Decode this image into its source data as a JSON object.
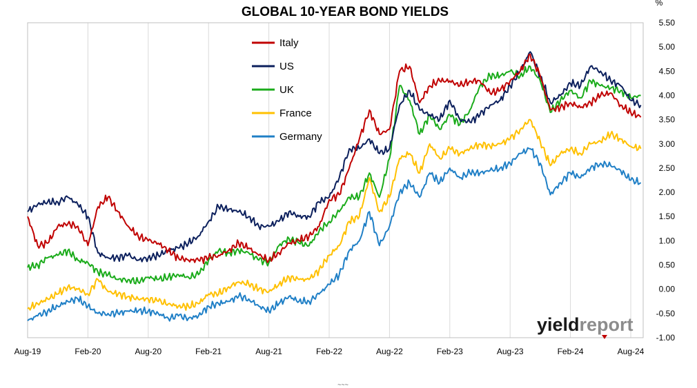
{
  "chart_data": {
    "type": "line",
    "title": "GLOBAL 10-YEAR BOND YIELDS",
    "unit_label": "%",
    "xlabel": "",
    "ylabel": "",
    "x_ticks": [
      "Aug-19",
      "Feb-20",
      "Aug-20",
      "Feb-21",
      "Aug-21",
      "Feb-22",
      "Aug-22",
      "Feb-23",
      "Aug-23",
      "Feb-24",
      "Aug-24"
    ],
    "y_ticks": [
      "5.50",
      "5.00",
      "4.50",
      "4.00",
      "3.50",
      "3.00",
      "2.50",
      "2.00",
      "1.50",
      "1.00",
      "0.50",
      "0.00",
      "-0.50",
      "-1.00"
    ],
    "ylim": [
      -1.0,
      5.5
    ],
    "x_start": "Aug-19",
    "x_end": "Sep-24",
    "grid": "vertical",
    "legend_position": "top-left",
    "series": [
      {
        "name": "Italy",
        "color": "#c00000",
        "x": [
          "2019-08",
          "2019-09",
          "2019-10",
          "2019-11",
          "2019-12",
          "2020-01",
          "2020-02",
          "2020-03",
          "2020-04",
          "2020-05",
          "2020-06",
          "2020-07",
          "2020-08",
          "2020-09",
          "2020-10",
          "2020-11",
          "2020-12",
          "2021-01",
          "2021-02",
          "2021-03",
          "2021-04",
          "2021-05",
          "2021-06",
          "2021-07",
          "2021-08",
          "2021-09",
          "2021-10",
          "2021-11",
          "2021-12",
          "2022-01",
          "2022-02",
          "2022-03",
          "2022-04",
          "2022-05",
          "2022-06",
          "2022-07",
          "2022-08",
          "2022-09",
          "2022-10",
          "2022-11",
          "2022-12",
          "2023-01",
          "2023-02",
          "2023-03",
          "2023-04",
          "2023-05",
          "2023-06",
          "2023-07",
          "2023-08",
          "2023-09",
          "2023-10",
          "2023-11",
          "2023-12",
          "2024-01",
          "2024-02",
          "2024-03",
          "2024-04",
          "2024-05",
          "2024-06",
          "2024-07",
          "2024-08",
          "2024-09"
        ],
        "values": [
          1.5,
          0.9,
          0.95,
          1.3,
          1.35,
          1.3,
          0.9,
          1.7,
          1.9,
          1.6,
          1.3,
          1.1,
          1.0,
          0.95,
          0.8,
          0.65,
          0.6,
          0.6,
          0.65,
          0.7,
          0.8,
          0.95,
          0.85,
          0.7,
          0.6,
          0.75,
          0.95,
          1.0,
          1.1,
          1.3,
          1.85,
          1.95,
          2.5,
          3.1,
          3.7,
          3.2,
          3.3,
          4.5,
          4.6,
          3.85,
          4.2,
          4.3,
          4.3,
          4.2,
          4.3,
          4.3,
          4.05,
          4.1,
          4.3,
          4.5,
          4.85,
          4.4,
          3.7,
          3.75,
          3.85,
          3.75,
          3.85,
          4.0,
          4.05,
          3.8,
          3.65,
          3.55
        ]
      },
      {
        "name": "US",
        "color": "#0b1f5c",
        "x": [
          "2019-08",
          "2019-09",
          "2019-10",
          "2019-11",
          "2019-12",
          "2020-01",
          "2020-02",
          "2020-03",
          "2020-04",
          "2020-05",
          "2020-06",
          "2020-07",
          "2020-08",
          "2020-09",
          "2020-10",
          "2020-11",
          "2020-12",
          "2021-01",
          "2021-02",
          "2021-03",
          "2021-04",
          "2021-05",
          "2021-06",
          "2021-07",
          "2021-08",
          "2021-09",
          "2021-10",
          "2021-11",
          "2021-12",
          "2022-01",
          "2022-02",
          "2022-03",
          "2022-04",
          "2022-05",
          "2022-06",
          "2022-07",
          "2022-08",
          "2022-09",
          "2022-10",
          "2022-11",
          "2022-12",
          "2023-01",
          "2023-02",
          "2023-03",
          "2023-04",
          "2023-05",
          "2023-06",
          "2023-07",
          "2023-08",
          "2023-09",
          "2023-10",
          "2023-11",
          "2023-12",
          "2024-01",
          "2024-02",
          "2024-03",
          "2024-04",
          "2024-05",
          "2024-06",
          "2024-07",
          "2024-08",
          "2024-09"
        ],
        "values": [
          1.6,
          1.75,
          1.8,
          1.8,
          1.9,
          1.75,
          1.5,
          0.75,
          0.65,
          0.65,
          0.7,
          0.6,
          0.65,
          0.7,
          0.8,
          0.85,
          0.95,
          1.1,
          1.4,
          1.7,
          1.65,
          1.6,
          1.5,
          1.3,
          1.3,
          1.4,
          1.6,
          1.5,
          1.5,
          1.8,
          1.9,
          2.3,
          2.9,
          2.9,
          3.1,
          2.8,
          2.9,
          3.8,
          4.1,
          3.7,
          3.6,
          3.5,
          3.9,
          3.5,
          3.45,
          3.6,
          3.8,
          3.9,
          4.2,
          4.5,
          4.9,
          4.4,
          3.85,
          4.0,
          4.25,
          4.2,
          4.6,
          4.5,
          4.3,
          4.2,
          3.9,
          3.8
        ]
      },
      {
        "name": "UK",
        "color": "#1aab1a",
        "x": [
          "2019-08",
          "2019-09",
          "2019-10",
          "2019-11",
          "2019-12",
          "2020-01",
          "2020-02",
          "2020-03",
          "2020-04",
          "2020-05",
          "2020-06",
          "2020-07",
          "2020-08",
          "2020-09",
          "2020-10",
          "2020-11",
          "2020-12",
          "2021-01",
          "2021-02",
          "2021-03",
          "2021-04",
          "2021-05",
          "2021-06",
          "2021-07",
          "2021-08",
          "2021-09",
          "2021-10",
          "2021-11",
          "2021-12",
          "2022-01",
          "2022-02",
          "2022-03",
          "2022-04",
          "2022-05",
          "2022-06",
          "2022-07",
          "2022-08",
          "2022-09",
          "2022-10",
          "2022-11",
          "2022-12",
          "2023-01",
          "2023-02",
          "2023-03",
          "2023-04",
          "2023-05",
          "2023-06",
          "2023-07",
          "2023-08",
          "2023-09",
          "2023-10",
          "2023-11",
          "2023-12",
          "2024-01",
          "2024-02",
          "2024-03",
          "2024-04",
          "2024-05",
          "2024-06",
          "2024-07",
          "2024-08",
          "2024-09"
        ],
        "values": [
          0.45,
          0.5,
          0.65,
          0.7,
          0.8,
          0.6,
          0.55,
          0.35,
          0.3,
          0.2,
          0.2,
          0.15,
          0.25,
          0.2,
          0.25,
          0.3,
          0.25,
          0.3,
          0.6,
          0.8,
          0.75,
          0.8,
          0.75,
          0.6,
          0.55,
          0.9,
          1.05,
          0.95,
          0.9,
          1.2,
          1.4,
          1.6,
          1.9,
          1.9,
          2.4,
          1.9,
          2.7,
          4.2,
          3.9,
          3.2,
          3.6,
          3.3,
          3.6,
          3.4,
          3.7,
          4.2,
          4.4,
          4.4,
          4.5,
          4.4,
          4.6,
          4.3,
          3.65,
          3.9,
          4.1,
          3.95,
          4.3,
          4.2,
          4.15,
          4.1,
          3.95,
          4.0
        ]
      },
      {
        "name": "France",
        "color": "#ffc000",
        "x": [
          "2019-08",
          "2019-09",
          "2019-10",
          "2019-11",
          "2019-12",
          "2020-01",
          "2020-02",
          "2020-03",
          "2020-04",
          "2020-05",
          "2020-06",
          "2020-07",
          "2020-08",
          "2020-09",
          "2020-10",
          "2020-11",
          "2020-12",
          "2021-01",
          "2021-02",
          "2021-03",
          "2021-04",
          "2021-05",
          "2021-06",
          "2021-07",
          "2021-08",
          "2021-09",
          "2021-10",
          "2021-11",
          "2021-12",
          "2022-01",
          "2022-02",
          "2022-03",
          "2022-04",
          "2022-05",
          "2022-06",
          "2022-07",
          "2022-08",
          "2022-09",
          "2022-10",
          "2022-11",
          "2022-12",
          "2023-01",
          "2023-02",
          "2023-03",
          "2023-04",
          "2023-05",
          "2023-06",
          "2023-07",
          "2023-08",
          "2023-09",
          "2023-10",
          "2023-11",
          "2023-12",
          "2024-01",
          "2024-02",
          "2024-03",
          "2024-04",
          "2024-05",
          "2024-06",
          "2024-07",
          "2024-08",
          "2024-09"
        ],
        "values": [
          -0.4,
          -0.3,
          -0.2,
          -0.1,
          0.05,
          0.0,
          -0.1,
          0.2,
          -0.05,
          -0.1,
          -0.15,
          -0.2,
          -0.2,
          -0.25,
          -0.3,
          -0.35,
          -0.35,
          -0.3,
          -0.1,
          -0.1,
          0.05,
          0.15,
          0.1,
          0.0,
          -0.05,
          0.1,
          0.25,
          0.2,
          0.2,
          0.4,
          0.7,
          0.9,
          1.4,
          1.5,
          2.3,
          1.6,
          1.9,
          2.7,
          2.8,
          2.4,
          3.0,
          2.7,
          2.9,
          2.8,
          2.9,
          3.0,
          2.95,
          3.0,
          3.1,
          3.3,
          3.5,
          3.05,
          2.55,
          2.8,
          2.9,
          2.8,
          3.0,
          3.05,
          3.2,
          3.1,
          2.95,
          2.9
        ]
      },
      {
        "name": "Germany",
        "color": "#1f7fc6",
        "x": [
          "2019-08",
          "2019-09",
          "2019-10",
          "2019-11",
          "2019-12",
          "2020-01",
          "2020-02",
          "2020-03",
          "2020-04",
          "2020-05",
          "2020-06",
          "2020-07",
          "2020-08",
          "2020-09",
          "2020-10",
          "2020-11",
          "2020-12",
          "2021-01",
          "2021-02",
          "2021-03",
          "2021-04",
          "2021-05",
          "2021-06",
          "2021-07",
          "2021-08",
          "2021-09",
          "2021-10",
          "2021-11",
          "2021-12",
          "2022-01",
          "2022-02",
          "2022-03",
          "2022-04",
          "2022-05",
          "2022-06",
          "2022-07",
          "2022-08",
          "2022-09",
          "2022-10",
          "2022-11",
          "2022-12",
          "2023-01",
          "2023-02",
          "2023-03",
          "2023-04",
          "2023-05",
          "2023-06",
          "2023-07",
          "2023-08",
          "2023-09",
          "2023-10",
          "2023-11",
          "2023-12",
          "2024-01",
          "2024-02",
          "2024-03",
          "2024-04",
          "2024-05",
          "2024-06",
          "2024-07",
          "2024-08",
          "2024-09"
        ],
        "values": [
          -0.65,
          -0.55,
          -0.45,
          -0.35,
          -0.25,
          -0.2,
          -0.35,
          -0.5,
          -0.5,
          -0.5,
          -0.45,
          -0.45,
          -0.45,
          -0.5,
          -0.6,
          -0.55,
          -0.6,
          -0.55,
          -0.35,
          -0.3,
          -0.25,
          -0.15,
          -0.2,
          -0.35,
          -0.45,
          -0.3,
          -0.15,
          -0.25,
          -0.25,
          -0.1,
          0.1,
          0.3,
          0.8,
          1.0,
          1.6,
          0.9,
          1.3,
          2.0,
          2.2,
          1.9,
          2.4,
          2.2,
          2.5,
          2.3,
          2.4,
          2.4,
          2.45,
          2.5,
          2.6,
          2.8,
          2.9,
          2.6,
          1.95,
          2.2,
          2.4,
          2.3,
          2.5,
          2.6,
          2.55,
          2.45,
          2.25,
          2.2
        ]
      }
    ]
  },
  "branding": {
    "logo_part1": "yield",
    "logo_part2": "report",
    "logo_color1": "#1a1a1a",
    "logo_color2": "#8c8c8c",
    "accent": "#c00000"
  },
  "footer_mark": "~~~"
}
